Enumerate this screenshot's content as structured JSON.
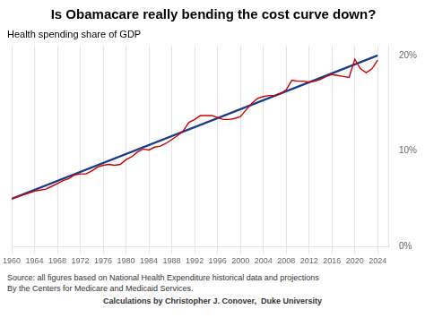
{
  "chart_data": {
    "type": "line",
    "title": "Is Obamacare really bending the cost curve down?",
    "ylabel": "Health spending share of GDP",
    "annotations": [
      "Source: all figures based on National Health Expenditure historical data and projections",
      "By the Centers for Medicare and Medicaid Services.",
      "Calculations by Christopher J. Conover,  Duke University"
    ],
    "xlim": [
      1960,
      2026
    ],
    "xticks": [
      1960,
      1964,
      1968,
      1972,
      1976,
      1980,
      1984,
      1988,
      1992,
      1996,
      2000,
      2004,
      2008,
      2012,
      2016,
      2020,
      2024
    ],
    "ylim": [
      0,
      21
    ],
    "yticks": [
      {
        "value": 0,
        "label": "0%"
      },
      {
        "value": 10,
        "label": "10%"
      },
      {
        "value": 20,
        "label": "20%"
      }
    ],
    "grid": "x",
    "series": [
      {
        "color": "#1a3a8a",
        "x": [
          1960,
          2024
        ],
        "values": [
          5.0,
          20.0
        ]
      },
      {
        "color": "#cc0000",
        "x": [
          1960,
          1961,
          1962,
          1963,
          1964,
          1965,
          1966,
          1967,
          1968,
          1969,
          1970,
          1971,
          1972,
          1973,
          1974,
          1975,
          1976,
          1977,
          1978,
          1979,
          1980,
          1981,
          1982,
          1983,
          1984,
          1985,
          1986,
          1987,
          1988,
          1989,
          1990,
          1991,
          1992,
          1993,
          1994,
          1995,
          1996,
          1997,
          1998,
          1999,
          2000,
          2001,
          2002,
          2003,
          2004,
          2005,
          2006,
          2007,
          2008,
          2009,
          2010,
          2011,
          2012,
          2013,
          2014,
          2015,
          2016,
          2017,
          2018,
          2019,
          2020,
          2021,
          2022,
          2023,
          2024
        ],
        "values": [
          5.0,
          5.2,
          5.4,
          5.6,
          5.8,
          5.9,
          6.0,
          6.3,
          6.6,
          6.9,
          7.1,
          7.5,
          7.6,
          7.6,
          7.9,
          8.3,
          8.5,
          8.6,
          8.5,
          8.6,
          9.1,
          9.4,
          9.9,
          10.2,
          10.1,
          10.4,
          10.5,
          10.8,
          11.2,
          11.6,
          12.1,
          13.0,
          13.3,
          13.7,
          13.7,
          13.7,
          13.5,
          13.3,
          13.3,
          13.4,
          13.6,
          14.3,
          15.0,
          15.5,
          15.7,
          15.8,
          15.8,
          16.0,
          16.4,
          17.4,
          17.3,
          17.3,
          17.2,
          17.3,
          17.5,
          17.8,
          18.0,
          17.9,
          17.8,
          17.7,
          19.6,
          18.6,
          18.2,
          18.6,
          19.5
        ]
      }
    ]
  }
}
